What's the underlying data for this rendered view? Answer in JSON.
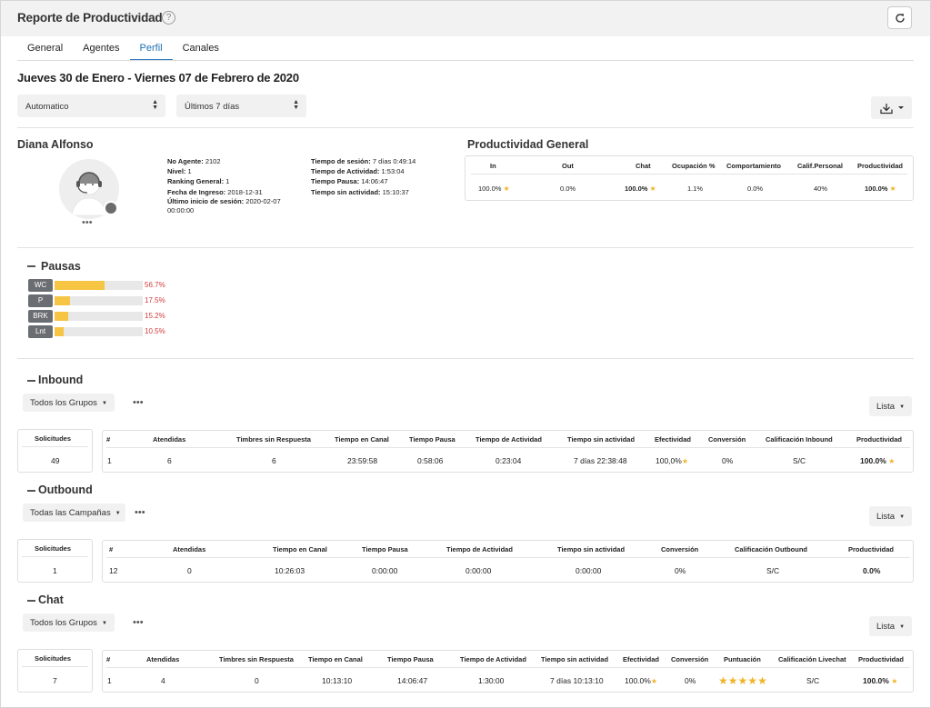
{
  "header": {
    "title": "Reporte de Productividad",
    "help": "?"
  },
  "tabs": [
    {
      "label": "General"
    },
    {
      "label": "Agentes"
    },
    {
      "label": "Perfil",
      "active": true
    },
    {
      "label": "Canales"
    }
  ],
  "date_range_title": "Jueves 30 de Enero - Viernes 07 de Febrero de 2020",
  "filters": {
    "mode": "Automatico",
    "period": "Últimos 7 días"
  },
  "agent": {
    "name": "Diana Alfonso",
    "more": "•••",
    "info_left": [
      {
        "label": "No Agente:",
        "value": "2102"
      },
      {
        "label": "Nivel:",
        "value": "1"
      },
      {
        "label": "Ranking General:",
        "value": "1"
      },
      {
        "label": "Fecha de Ingreso:",
        "value": "2018-12-31"
      },
      {
        "label": "Último inicio de sesión:",
        "value": "2020-02-07 00:00:00"
      }
    ],
    "info_right": [
      {
        "label": "Tiempo de sesión:",
        "value": "7 días 0:49:14"
      },
      {
        "label": "Tiempo de Actividad:",
        "value": "1:53:04"
      },
      {
        "label": "Tiempo Pausa:",
        "value": "14:06:47"
      },
      {
        "label": "Tiempo sin actividad:",
        "value": "15:10:37"
      }
    ]
  },
  "productividad_general": {
    "title": "Productividad General",
    "headers": [
      "In",
      "Out",
      "Chat",
      "Ocupación %",
      "Comportamiento",
      "Calif.Personal",
      "Productividad"
    ],
    "values": [
      "100.0%",
      "0.0%",
      "100.0%",
      "1.1%",
      "0.0%",
      "40%",
      "100.0%"
    ]
  },
  "pausas": {
    "title": "Pausas",
    "items": [
      {
        "label": "WC",
        "percent": 56.7,
        "text": "56.7%"
      },
      {
        "label": "P",
        "percent": 17.5,
        "text": "17.5%"
      },
      {
        "label": "BRK",
        "percent": 15.2,
        "text": "15.2%"
      },
      {
        "label": "Lnt",
        "percent": 10.5,
        "text": "10.5%"
      }
    ]
  },
  "inbound": {
    "title": "Inbound",
    "group_filter": "Todos los Grupos",
    "more": "•••",
    "view": "Lista",
    "solicitudes_label": "Solicitudes",
    "solicitudes_value": "49",
    "headers": [
      "#",
      "Atendidas",
      "Timbres sin Respuesta",
      "Tiempo en Canal",
      "Tiempo Pausa",
      "Tiempo de Actividad",
      "Tiempo sin actividad",
      "Efectividad",
      "Conversión",
      "Calificación Inbound",
      "Productividad"
    ],
    "row": [
      "1",
      "6",
      "6",
      "23:59:58",
      "0:58:06",
      "0:23:04",
      "7 días 22:38:48",
      "100,0%",
      "0%",
      "S/C",
      "100.0%"
    ]
  },
  "outbound": {
    "title": "Outbound",
    "group_filter": "Todas las Campañas",
    "more": "•••",
    "view": "Lista",
    "solicitudes_label": "Solicitudes",
    "solicitudes_value": "1",
    "headers": [
      "#",
      "Atendidas",
      "Tiempo en Canal",
      "Tiempo Pausa",
      "Tiempo de Actividad",
      "Tiempo sin actividad",
      "Conversión",
      "Calificación Outbound",
      "Productividad"
    ],
    "row": [
      "12",
      "0",
      "10:26:03",
      "0:00:00",
      "0:00:00",
      "0:00:00",
      "0%",
      "S/C",
      "0.0%"
    ]
  },
  "chat": {
    "title": "Chat",
    "group_filter": "Todos los Grupos",
    "more": "•••",
    "view": "Lista",
    "solicitudes_label": "Solicitudes",
    "solicitudes_value": "7",
    "headers": [
      "#",
      "Atendidas",
      "Timbres sin Respuesta",
      "Tiempo en Canal",
      "Tiempo Pausa",
      "Tiempo de Actividad",
      "Tiempo sin actividad",
      "Efectividad",
      "Conversión",
      "Puntuación",
      "Calificación Livechat",
      "Productividad"
    ],
    "row": [
      "1",
      "4",
      "0",
      "10:13:10",
      "14:06:47",
      "1:30:00",
      "7 días 10:13:10",
      "100.0%",
      "0%",
      "",
      "S/C",
      "100.0%"
    ],
    "rating_stars": 5
  },
  "colors": {
    "accent": "#2d7bc1",
    "bar_fill": "#f7c544",
    "pct_red": "#d23b3b",
    "star": "#f0b429",
    "label_bg": "#6a6d72"
  }
}
